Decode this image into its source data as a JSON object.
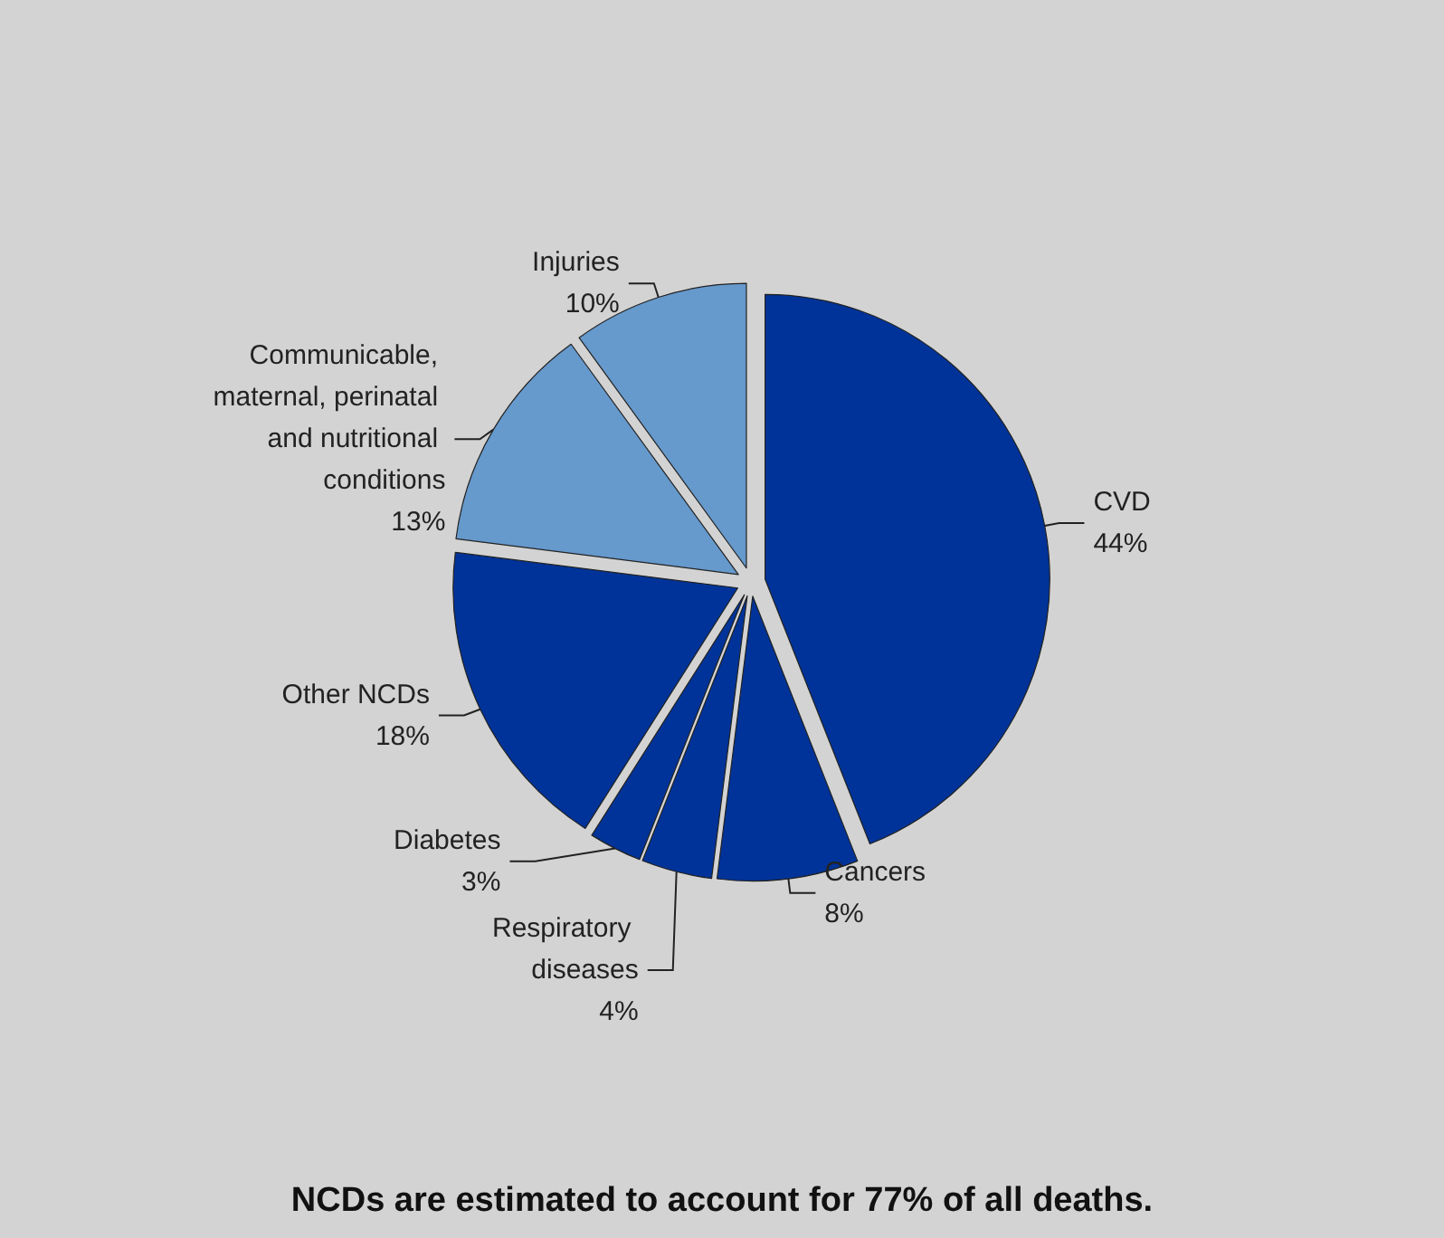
{
  "chart_data": {
    "type": "pie",
    "title": "NCDs are estimated to account for 77% of all deaths.",
    "categories": [
      "CVD",
      "Cancers",
      "Respiratory diseases",
      "Diabetes",
      "Other NCDs",
      "Communicable, maternal, perinatal and nutritional conditions",
      "Injuries"
    ],
    "values": [
      44,
      8,
      4,
      3,
      18,
      13,
      10
    ],
    "value_labels": [
      "44%",
      "8%",
      "4%",
      "3%",
      "18%",
      "13%",
      "10%"
    ],
    "colors": [
      "#003399",
      "#003399",
      "#003399",
      "#003399",
      "#003399",
      "#6699cc",
      "#6699cc"
    ],
    "legend": false
  }
}
